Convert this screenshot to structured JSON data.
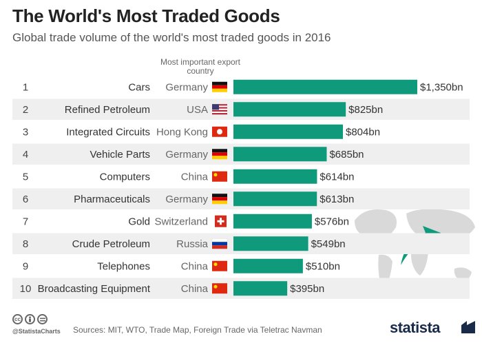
{
  "chart_data": {
    "type": "bar",
    "title": "The World's Most Traded Goods",
    "subtitle": "Global trade volume of the world's most traded goods in 2016",
    "column_header": "Most important export country",
    "categories": [
      "Cars",
      "Refined Petroleum",
      "Integrated Circuits",
      "Vehicle Parts",
      "Computers",
      "Pharmaceuticals",
      "Gold",
      "Crude Petroleum",
      "Telephones",
      "Broadcasting Equipment"
    ],
    "ranks": [
      "1",
      "2",
      "3",
      "4",
      "5",
      "6",
      "7",
      "8",
      "9",
      "10"
    ],
    "countries": [
      "Germany",
      "USA",
      "Hong Kong",
      "Germany",
      "China",
      "Germany",
      "Switzerland",
      "Russia",
      "China",
      "China"
    ],
    "values": [
      1350,
      825,
      804,
      685,
      614,
      613,
      576,
      549,
      510,
      395
    ],
    "value_labels": [
      "$1,350bn",
      "$825bn",
      "$804bn",
      "$685bn",
      "$614bn",
      "$613bn",
      "$576bn",
      "$549bn",
      "$510bn",
      "$395bn"
    ],
    "unit": "billion USD",
    "xlim": [
      0,
      1350
    ],
    "bar_color": "#0f9a7b",
    "stripe_color": "#efefef"
  },
  "footer": {
    "icons": [
      "cc-icon",
      "by-icon",
      "nd-icon"
    ],
    "cc_text": "cc",
    "handle": "@StatistaCharts",
    "sources": "Sources:  MIT, WTO, Trade Map, Foreign Trade via Teletrac Navman",
    "logo": "statista"
  }
}
